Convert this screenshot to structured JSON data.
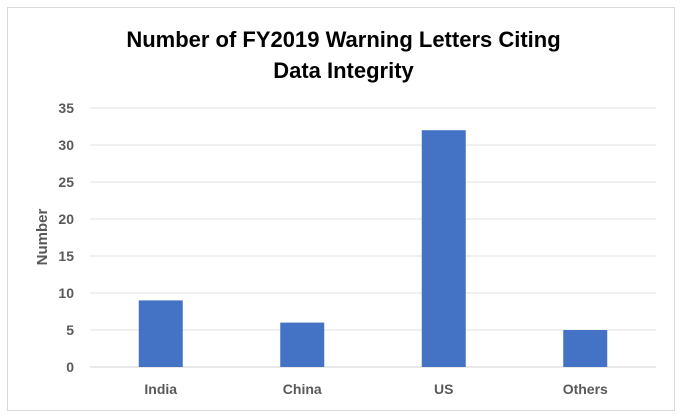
{
  "chart_data": {
    "type": "bar",
    "title_lines": [
      "Number of FY2019 Warning Letters Citing",
      "Data Integrity"
    ],
    "xlabel": "",
    "ylabel": "Number",
    "categories": [
      "India",
      "China",
      "US",
      "Others"
    ],
    "values": [
      9,
      6,
      32,
      5
    ],
    "ylim": [
      0,
      35
    ],
    "yticks": [
      0,
      5,
      10,
      15,
      20,
      25,
      30,
      35
    ],
    "grid": true,
    "legend": "none",
    "bar_color": "#4472c4"
  }
}
